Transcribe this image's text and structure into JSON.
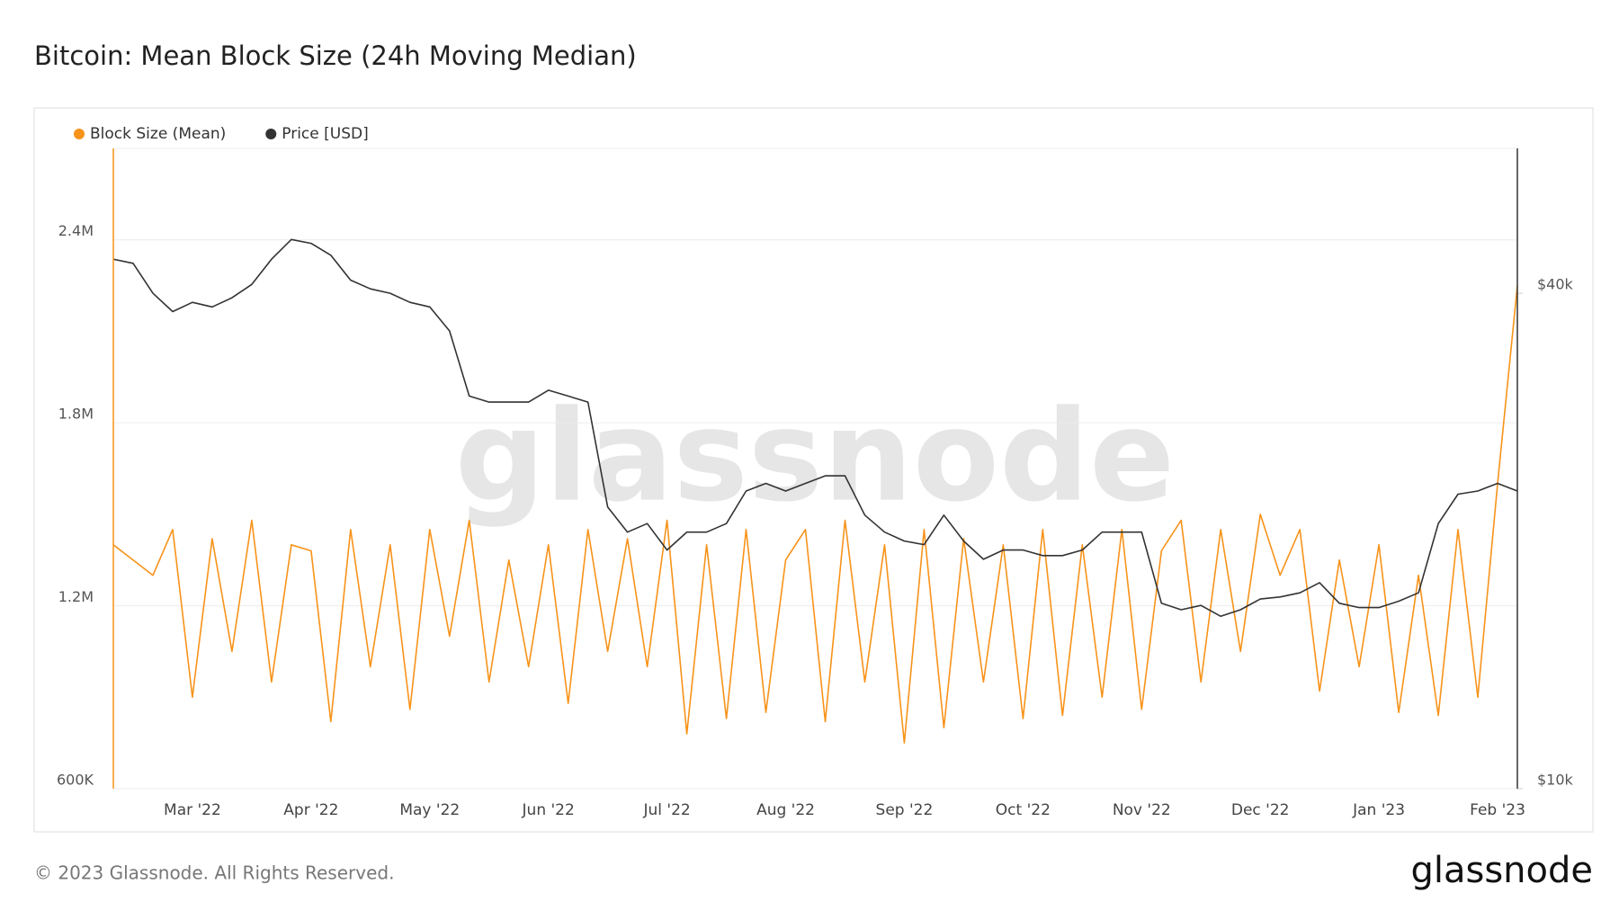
{
  "chart_data": {
    "type": "line",
    "title": "Bitcoin: Mean Block Size (24h Moving Median)",
    "watermark": "glassnode",
    "footer": "© 2023 Glassnode. All Rights Reserved.",
    "logo": "glassnode",
    "categories": [
      null,
      null,
      null,
      null,
      "Mar '22",
      null,
      null,
      null,
      null,
      null,
      "Apr '22",
      null,
      null,
      null,
      null,
      null,
      "May '22",
      null,
      null,
      null,
      null,
      null,
      "Jun '22",
      null,
      null,
      null,
      null,
      null,
      "Jul '22",
      null,
      null,
      null,
      null,
      null,
      "Aug '22",
      null,
      null,
      null,
      null,
      null,
      "Sep '22",
      null,
      null,
      null,
      null,
      null,
      "Oct '22",
      null,
      null,
      null,
      null,
      null,
      "Nov '22",
      null,
      null,
      null,
      null,
      null,
      "Dec '22",
      null,
      null,
      null,
      null,
      null,
      "Jan '23",
      null,
      null,
      null,
      null,
      null,
      "Feb '23",
      null
    ],
    "series": [
      {
        "name": "Block Size (Mean)",
        "color": "#f7931a",
        "axis": "y",
        "values": [
          1400000,
          1350000,
          1300000,
          1450000,
          900000,
          1420000,
          1050000,
          1480000,
          950000,
          1400000,
          1380000,
          820000,
          1450000,
          1000000,
          1400000,
          860000,
          1450000,
          1100000,
          1480000,
          950000,
          1350000,
          1000000,
          1400000,
          880000,
          1450000,
          1050000,
          1420000,
          1000000,
          1480000,
          780000,
          1400000,
          830000,
          1450000,
          850000,
          1350000,
          1450000,
          820000,
          1480000,
          950000,
          1400000,
          750000,
          1450000,
          800000,
          1420000,
          950000,
          1400000,
          830000,
          1450000,
          840000,
          1400000,
          900000,
          1450000,
          860000,
          1380000,
          1480000,
          950000,
          1450000,
          1050000,
          1500000,
          1300000,
          1450000,
          920000,
          1350000,
          1000000,
          1400000,
          850000,
          1300000,
          840000,
          1450000,
          900000,
          1600000,
          2250000
        ]
      },
      {
        "name": "Price [USD]",
        "color": "#333333",
        "axis": "y2",
        "values": [
          44000,
          43500,
          40000,
          38000,
          39000,
          38500,
          39500,
          41000,
          44000,
          46500,
          46000,
          44500,
          41500,
          40500,
          40000,
          39000,
          38500,
          36000,
          30000,
          29500,
          29500,
          29500,
          30500,
          30000,
          29500,
          22000,
          20500,
          21000,
          19500,
          20500,
          20500,
          21000,
          23000,
          23500,
          23000,
          23500,
          24000,
          24000,
          21500,
          20500,
          20000,
          19800,
          21500,
          20000,
          19000,
          19500,
          19500,
          19200,
          19200,
          19500,
          20500,
          20500,
          20500,
          16800,
          16500,
          16700,
          16200,
          16500,
          17000,
          17100,
          17300,
          17800,
          16800,
          16600,
          16600,
          16900,
          17300,
          21000,
          22800,
          23000,
          23500,
          23000
        ]
      }
    ],
    "ylim": [
      600000,
      2700000
    ],
    "yticks": [
      {
        "value": 600000,
        "label": "600K"
      },
      {
        "value": 1200000,
        "label": "1.2M"
      },
      {
        "value": 1800000,
        "label": "1.8M"
      },
      {
        "value": 2400000,
        "label": "2.4M"
      }
    ],
    "y2lim": [
      10000,
      60000
    ],
    "y2log": true,
    "y2ticks": [
      {
        "value": 10000,
        "label": "$10k"
      },
      {
        "value": 40000,
        "label": "$40k"
      }
    ],
    "grid": true
  }
}
